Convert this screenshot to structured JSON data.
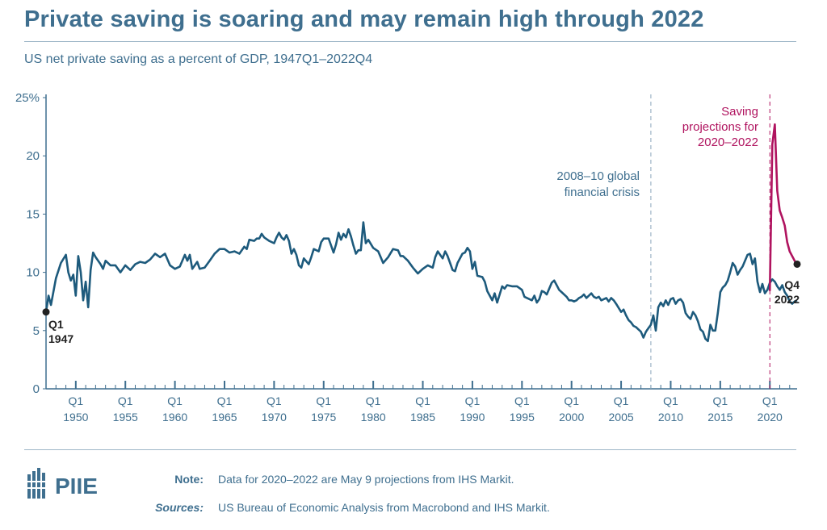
{
  "header": {
    "title": "Private saving is soaring and may remain high through 2022",
    "subtitle": "US net private saving as a percent of GDP, 1947Q1–2022Q4"
  },
  "footer": {
    "logo_text": "PIIE",
    "note_label": "Note:",
    "note_text": "Data for 2020–2022 are May 9 projections from IHS Markit.",
    "sources_label": "Sources:",
    "sources_text": "US Bureau of Economic Analysis from Macrobond and IHS Markit."
  },
  "colors": {
    "historical": "#1d5a7c",
    "projection": "#b0135f",
    "text": "#3f6f8f",
    "axis": "#3f6f8f"
  },
  "chart_data": {
    "type": "line",
    "title": "Private saving is soaring and may remain high through 2022",
    "subtitle": "US net private saving as a percent of GDP, 1947Q1–2022Q4",
    "xlabel": "",
    "ylabel": "",
    "xlim": [
      1947.0,
      2022.75
    ],
    "ylim": [
      0,
      25
    ],
    "y_ticks": [
      0,
      5,
      10,
      15,
      20,
      25
    ],
    "y_tick_labels": [
      "0",
      "5",
      "10",
      "15",
      "20",
      "25%"
    ],
    "x_ticks": [
      1950,
      1955,
      1960,
      1965,
      1970,
      1975,
      1980,
      1985,
      1990,
      1995,
      2000,
      2005,
      2010,
      2015,
      2020
    ],
    "x_tick_top": "Q1",
    "grid": false,
    "legend": "none",
    "series": [
      {
        "kind": "historical",
        "points": [
          [
            1947.0,
            6.6
          ],
          [
            1947.25,
            8.0
          ],
          [
            1947.5,
            7.2
          ],
          [
            1948.0,
            9.5
          ],
          [
            1948.5,
            10.8
          ],
          [
            1949.0,
            11.5
          ],
          [
            1949.25,
            10.0
          ],
          [
            1949.5,
            9.3
          ],
          [
            1949.75,
            9.8
          ],
          [
            1950.0,
            8.0
          ],
          [
            1950.25,
            11.4
          ],
          [
            1950.5,
            10.0
          ],
          [
            1950.75,
            7.6
          ],
          [
            1951.0,
            9.2
          ],
          [
            1951.25,
            7.0
          ],
          [
            1951.5,
            10.2
          ],
          [
            1951.75,
            11.7
          ],
          [
            1952.0,
            11.3
          ],
          [
            1952.5,
            10.7
          ],
          [
            1952.75,
            10.3
          ],
          [
            1953.0,
            11.0
          ],
          [
            1953.5,
            10.6
          ],
          [
            1954.0,
            10.6
          ],
          [
            1954.5,
            10.0
          ],
          [
            1955.0,
            10.6
          ],
          [
            1955.5,
            10.2
          ],
          [
            1956.0,
            10.7
          ],
          [
            1956.5,
            10.9
          ],
          [
            1957.0,
            10.8
          ],
          [
            1957.5,
            11.1
          ],
          [
            1958.0,
            11.6
          ],
          [
            1958.5,
            11.3
          ],
          [
            1959.0,
            11.6
          ],
          [
            1959.5,
            10.6
          ],
          [
            1960.0,
            10.3
          ],
          [
            1960.5,
            10.5
          ],
          [
            1961.0,
            11.5
          ],
          [
            1961.25,
            11.0
          ],
          [
            1961.5,
            11.5
          ],
          [
            1961.75,
            10.3
          ],
          [
            1962.0,
            10.6
          ],
          [
            1962.25,
            10.9
          ],
          [
            1962.5,
            10.3
          ],
          [
            1963.0,
            10.4
          ],
          [
            1963.5,
            11.0
          ],
          [
            1964.0,
            11.6
          ],
          [
            1964.5,
            12.0
          ],
          [
            1965.0,
            12.0
          ],
          [
            1965.5,
            11.7
          ],
          [
            1966.0,
            11.8
          ],
          [
            1966.5,
            11.6
          ],
          [
            1967.0,
            12.2
          ],
          [
            1967.25,
            12.0
          ],
          [
            1967.5,
            12.8
          ],
          [
            1968.0,
            12.7
          ],
          [
            1968.25,
            12.9
          ],
          [
            1968.5,
            12.9
          ],
          [
            1968.75,
            13.3
          ],
          [
            1969.0,
            13.0
          ],
          [
            1969.5,
            12.7
          ],
          [
            1970.0,
            12.5
          ],
          [
            1970.25,
            13.0
          ],
          [
            1970.5,
            13.4
          ],
          [
            1970.75,
            13.0
          ],
          [
            1971.0,
            12.8
          ],
          [
            1971.25,
            13.2
          ],
          [
            1971.5,
            12.7
          ],
          [
            1971.75,
            11.6
          ],
          [
            1972.0,
            12.0
          ],
          [
            1972.25,
            11.5
          ],
          [
            1972.5,
            10.6
          ],
          [
            1972.75,
            10.4
          ],
          [
            1973.0,
            11.2
          ],
          [
            1973.5,
            10.7
          ],
          [
            1973.75,
            11.3
          ],
          [
            1974.0,
            12.0
          ],
          [
            1974.5,
            11.8
          ],
          [
            1974.75,
            12.6
          ],
          [
            1975.0,
            12.9
          ],
          [
            1975.5,
            12.9
          ],
          [
            1975.75,
            12.3
          ],
          [
            1976.0,
            11.7
          ],
          [
            1976.25,
            12.4
          ],
          [
            1976.5,
            13.4
          ],
          [
            1976.75,
            12.8
          ],
          [
            1977.0,
            13.3
          ],
          [
            1977.25,
            13.0
          ],
          [
            1977.5,
            13.7
          ],
          [
            1977.75,
            13.1
          ],
          [
            1978.0,
            12.3
          ],
          [
            1978.25,
            11.6
          ],
          [
            1978.5,
            11.9
          ],
          [
            1978.75,
            11.9
          ],
          [
            1979.0,
            14.3
          ],
          [
            1979.25,
            12.5
          ],
          [
            1979.5,
            12.8
          ],
          [
            1980.0,
            12.1
          ],
          [
            1980.5,
            11.8
          ],
          [
            1980.75,
            11.3
          ],
          [
            1981.0,
            10.8
          ],
          [
            1981.5,
            11.3
          ],
          [
            1982.0,
            12.0
          ],
          [
            1982.5,
            11.9
          ],
          [
            1982.75,
            11.4
          ],
          [
            1983.0,
            11.4
          ],
          [
            1983.5,
            11.0
          ],
          [
            1984.0,
            10.4
          ],
          [
            1984.5,
            9.9
          ],
          [
            1985.0,
            10.3
          ],
          [
            1985.5,
            10.6
          ],
          [
            1986.0,
            10.4
          ],
          [
            1986.25,
            11.3
          ],
          [
            1986.5,
            11.8
          ],
          [
            1987.0,
            11.2
          ],
          [
            1987.25,
            11.8
          ],
          [
            1987.5,
            11.4
          ],
          [
            1987.75,
            10.8
          ],
          [
            1988.0,
            10.2
          ],
          [
            1988.25,
            10.1
          ],
          [
            1988.5,
            10.8
          ],
          [
            1989.0,
            11.6
          ],
          [
            1989.25,
            11.7
          ],
          [
            1989.5,
            12.1
          ],
          [
            1989.75,
            11.8
          ],
          [
            1990.0,
            10.3
          ],
          [
            1990.25,
            10.9
          ],
          [
            1990.5,
            9.7
          ],
          [
            1991.0,
            9.6
          ],
          [
            1991.25,
            9.2
          ],
          [
            1991.5,
            8.4
          ],
          [
            1992.0,
            7.6
          ],
          [
            1992.25,
            8.2
          ],
          [
            1992.5,
            7.4
          ],
          [
            1993.0,
            8.8
          ],
          [
            1993.25,
            8.6
          ],
          [
            1993.5,
            8.9
          ],
          [
            1994.0,
            8.8
          ],
          [
            1994.5,
            8.8
          ],
          [
            1995.0,
            8.5
          ],
          [
            1995.25,
            7.9
          ],
          [
            1995.75,
            7.7
          ],
          [
            1996.0,
            7.6
          ],
          [
            1996.25,
            8.0
          ],
          [
            1996.5,
            7.4
          ],
          [
            1996.75,
            7.7
          ],
          [
            1997.0,
            8.4
          ],
          [
            1997.25,
            8.3
          ],
          [
            1997.5,
            8.1
          ],
          [
            1998.0,
            9.1
          ],
          [
            1998.25,
            9.3
          ],
          [
            1998.5,
            8.9
          ],
          [
            1998.75,
            8.5
          ],
          [
            1999.0,
            8.3
          ],
          [
            1999.5,
            7.9
          ],
          [
            1999.75,
            7.6
          ],
          [
            2000.0,
            7.6
          ],
          [
            2000.25,
            7.5
          ],
          [
            2000.5,
            7.6
          ],
          [
            2000.75,
            7.8
          ],
          [
            2001.0,
            7.9
          ],
          [
            2001.25,
            8.1
          ],
          [
            2001.5,
            7.8
          ],
          [
            2002.0,
            8.2
          ],
          [
            2002.25,
            7.9
          ],
          [
            2002.5,
            7.8
          ],
          [
            2002.75,
            7.9
          ],
          [
            2003.0,
            7.6
          ],
          [
            2003.5,
            7.8
          ],
          [
            2003.75,
            7.5
          ],
          [
            2004.0,
            7.8
          ],
          [
            2004.25,
            7.6
          ],
          [
            2004.5,
            7.3
          ],
          [
            2005.0,
            6.6
          ],
          [
            2005.25,
            6.8
          ],
          [
            2005.5,
            6.3
          ],
          [
            2005.75,
            5.9
          ],
          [
            2006.0,
            5.7
          ],
          [
            2006.25,
            5.4
          ],
          [
            2006.5,
            5.3
          ],
          [
            2006.75,
            5.1
          ],
          [
            2007.0,
            4.9
          ],
          [
            2007.25,
            4.4
          ],
          [
            2007.5,
            4.9
          ],
          [
            2007.75,
            5.2
          ],
          [
            2008.0,
            5.5
          ],
          [
            2008.25,
            6.3
          ],
          [
            2008.5,
            5.0
          ],
          [
            2008.75,
            7.0
          ],
          [
            2009.0,
            7.4
          ],
          [
            2009.25,
            7.1
          ],
          [
            2009.5,
            7.6
          ],
          [
            2009.75,
            7.2
          ],
          [
            2010.0,
            7.7
          ],
          [
            2010.25,
            7.8
          ],
          [
            2010.5,
            7.3
          ],
          [
            2010.75,
            7.6
          ],
          [
            2011.0,
            7.7
          ],
          [
            2011.25,
            7.4
          ],
          [
            2011.5,
            6.5
          ],
          [
            2011.75,
            6.2
          ],
          [
            2012.0,
            6.0
          ],
          [
            2012.25,
            6.6
          ],
          [
            2012.5,
            6.3
          ],
          [
            2012.75,
            5.8
          ],
          [
            2013.0,
            5.1
          ],
          [
            2013.25,
            4.9
          ],
          [
            2013.5,
            4.3
          ],
          [
            2013.75,
            4.1
          ],
          [
            2014.0,
            5.5
          ],
          [
            2014.25,
            5.0
          ],
          [
            2014.5,
            5.0
          ],
          [
            2014.75,
            6.5
          ],
          [
            2015.0,
            8.3
          ],
          [
            2015.25,
            8.7
          ],
          [
            2015.5,
            8.9
          ],
          [
            2015.75,
            9.3
          ],
          [
            2016.0,
            10.0
          ],
          [
            2016.25,
            10.8
          ],
          [
            2016.5,
            10.5
          ],
          [
            2016.75,
            9.8
          ],
          [
            2017.0,
            10.2
          ],
          [
            2017.25,
            10.5
          ],
          [
            2017.5,
            11.0
          ],
          [
            2017.75,
            11.5
          ],
          [
            2018.0,
            11.6
          ],
          [
            2018.25,
            10.7
          ],
          [
            2018.5,
            11.2
          ],
          [
            2018.75,
            9.2
          ],
          [
            2019.0,
            8.3
          ],
          [
            2019.25,
            9.0
          ],
          [
            2019.5,
            8.2
          ],
          [
            2019.75,
            8.5
          ],
          [
            2020.0,
            9.1
          ],
          [
            2020.25,
            9.4
          ],
          [
            2020.5,
            9.2
          ],
          [
            2020.75,
            8.8
          ],
          [
            2021.0,
            8.5
          ],
          [
            2021.25,
            8.9
          ],
          [
            2021.5,
            8.3
          ],
          [
            2021.75,
            8.0
          ],
          [
            2022.0,
            7.5
          ],
          [
            2022.25,
            7.3
          ],
          [
            2022.5,
            7.5
          ],
          [
            2022.75,
            7.6
          ]
        ]
      },
      {
        "kind": "projection",
        "points": [
          [
            2020.0,
            8.4
          ],
          [
            2020.25,
            21.0
          ],
          [
            2020.5,
            22.7
          ],
          [
            2020.75,
            17.0
          ],
          [
            2021.0,
            15.3
          ],
          [
            2021.25,
            14.7
          ],
          [
            2021.5,
            14.0
          ],
          [
            2021.75,
            12.6
          ],
          [
            2022.0,
            11.8
          ],
          [
            2022.5,
            11.0
          ],
          [
            2022.75,
            10.7
          ]
        ]
      }
    ],
    "annotations": {
      "start_label": [
        "Q1",
        "1947"
      ],
      "end_label": [
        "Q4",
        "2022"
      ],
      "crisis_label": [
        "2008–10 global",
        "financial crisis"
      ],
      "projection_label": [
        "Saving",
        "projections for",
        "2020–2022"
      ]
    }
  }
}
